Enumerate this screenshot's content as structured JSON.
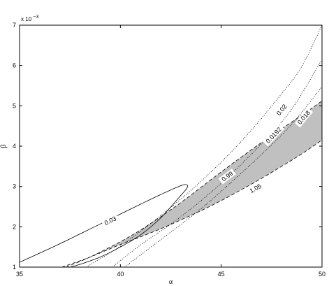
{
  "chart_data": {
    "type": "line",
    "xlabel": "α",
    "ylabel": "β",
    "exponent_label": "x 10",
    "exponent_power": "−3",
    "xlim": [
      35,
      50
    ],
    "ylim": [
      1,
      7
    ],
    "y_scale": 0.001,
    "x_ticks": [
      35,
      40,
      45,
      50
    ],
    "y_ticks": [
      1,
      2,
      3,
      4,
      5,
      6,
      7
    ],
    "x_tick_labels": [
      "35",
      "40",
      "45",
      "50"
    ],
    "y_tick_labels": [
      "1",
      "2",
      "3",
      "4",
      "5",
      "6",
      "7"
    ],
    "grid": false,
    "shaded_region": {
      "color": "#c0c0c0",
      "upper": [
        [
          38.5,
          1.25
        ],
        [
          40,
          1.63
        ],
        [
          41,
          1.92
        ],
        [
          42,
          2.25
        ],
        [
          43,
          2.6
        ],
        [
          44,
          2.98
        ],
        [
          45,
          3.36
        ],
        [
          46,
          3.73
        ],
        [
          47,
          4.09
        ],
        [
          48,
          4.43
        ],
        [
          49,
          4.77
        ],
        [
          50,
          5.12
        ]
      ],
      "lower": [
        [
          38.5,
          1.25
        ],
        [
          40,
          1.56
        ],
        [
          41,
          1.75
        ],
        [
          42,
          1.95
        ],
        [
          43,
          2.17
        ],
        [
          44,
          2.4
        ],
        [
          45,
          2.65
        ],
        [
          46,
          2.92
        ],
        [
          47,
          3.2
        ],
        [
          48,
          3.5
        ],
        [
          49,
          3.81
        ],
        [
          50,
          4.15
        ]
      ]
    },
    "contours": [
      {
        "label": "0.03",
        "style": "solid",
        "label_at": [
          39.5,
          2.15
        ],
        "points": [
          [
            35,
            1.12
          ],
          [
            37,
            1.58
          ],
          [
            39,
            2.07
          ],
          [
            41,
            2.56
          ],
          [
            42,
            2.8
          ],
          [
            43,
            3.02
          ],
          [
            43.3,
            3.04
          ],
          [
            43.3,
            2.96
          ],
          [
            43,
            2.78
          ],
          [
            42,
            2.22
          ],
          [
            41,
            1.8
          ],
          [
            40,
            1.5
          ],
          [
            39,
            1.25
          ],
          [
            38,
            1.07
          ],
          [
            37.5,
            1.0
          ]
        ]
      },
      {
        "label": "0.02",
        "style": "dotted",
        "label_at": [
          48,
          4.9
        ],
        "points": [
          [
            38.3,
            1.0
          ],
          [
            40,
            1.52
          ],
          [
            42,
            2.28
          ],
          [
            44,
            3.13
          ],
          [
            46,
            4.12
          ],
          [
            48,
            5.3
          ],
          [
            49,
            5.98
          ],
          [
            50,
            7.0
          ]
        ]
      },
      {
        "label": "0.0192",
        "style": "dotted",
        "label_at": [
          47.6,
          4.27
        ],
        "points": [
          [
            39.6,
            1.0
          ],
          [
            41,
            1.55
          ],
          [
            43,
            2.25
          ],
          [
            45,
            3.08
          ],
          [
            47,
            4.06
          ],
          [
            48.5,
            4.92
          ],
          [
            50,
            6.15
          ]
        ]
      },
      {
        "label": "0.018",
        "style": "dotted",
        "label_at": [
          49.1,
          4.71
        ],
        "points": [
          [
            40.2,
            1.0
          ],
          [
            42,
            1.68
          ],
          [
            44,
            2.45
          ],
          [
            46,
            3.33
          ],
          [
            48,
            4.28
          ],
          [
            49,
            4.84
          ],
          [
            50,
            5.48
          ]
        ]
      },
      {
        "label": "0.99",
        "style": "dashed",
        "label_at": [
          45.3,
          3.25
        ],
        "points": [
          [
            37.3,
            1.0
          ],
          [
            38.5,
            1.25
          ],
          [
            40,
            1.63
          ],
          [
            41,
            1.92
          ],
          [
            42,
            2.25
          ],
          [
            43,
            2.6
          ],
          [
            44,
            2.98
          ],
          [
            45,
            3.36
          ],
          [
            46,
            3.73
          ],
          [
            47,
            4.09
          ],
          [
            48,
            4.43
          ],
          [
            49,
            4.77
          ],
          [
            50,
            5.12
          ]
        ]
      },
      {
        "label": "1.05",
        "style": "dashed",
        "label_at": [
          46.7,
          2.95
        ],
        "points": [
          [
            37.1,
            1.0
          ],
          [
            38.5,
            1.25
          ],
          [
            40,
            1.56
          ],
          [
            41,
            1.75
          ],
          [
            42,
            1.95
          ],
          [
            43,
            2.17
          ],
          [
            44,
            2.4
          ],
          [
            45,
            2.65
          ],
          [
            46,
            2.92
          ],
          [
            47,
            3.2
          ],
          [
            48,
            3.5
          ],
          [
            49,
            3.81
          ],
          [
            50,
            4.15
          ]
        ]
      }
    ]
  }
}
